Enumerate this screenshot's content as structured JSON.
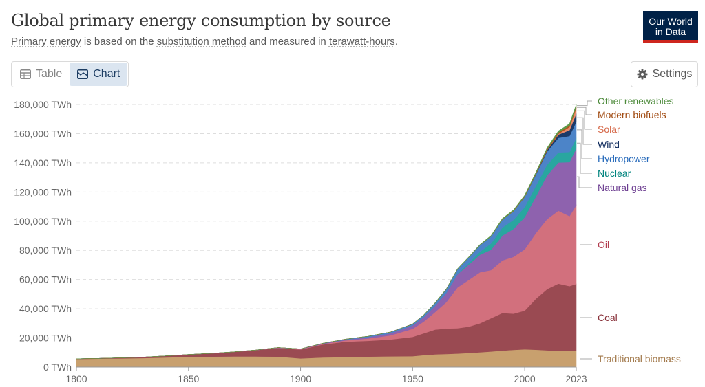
{
  "header": {
    "title": "Global primary energy consumption by source",
    "subtitle_parts": [
      {
        "text": "Primary energy",
        "link": true
      },
      {
        "text": " is based on the ",
        "link": false
      },
      {
        "text": "substitution method",
        "link": true
      },
      {
        "text": " and measured in ",
        "link": false
      },
      {
        "text": "terawatt-hours",
        "link": true
      },
      {
        "text": ".",
        "link": false
      }
    ],
    "logo_line1": "Our World",
    "logo_line2": "in Data"
  },
  "toolbar": {
    "table_label": "Table",
    "chart_label": "Chart",
    "active_tab": "Chart",
    "settings_label": "Settings"
  },
  "chart_data": {
    "type": "area",
    "stacked": true,
    "x": [
      1800,
      1810,
      1820,
      1830,
      1840,
      1850,
      1860,
      1870,
      1880,
      1890,
      1900,
      1910,
      1920,
      1930,
      1940,
      1950,
      1955,
      1960,
      1965,
      1970,
      1975,
      1980,
      1985,
      1990,
      1995,
      2000,
      2005,
      2010,
      2015,
      2020,
      2023
    ],
    "series": [
      {
        "name": "Traditional biomass",
        "color": "#c8a06e",
        "label_color": "#a2794b",
        "values": [
          5600,
          5800,
          6000,
          6200,
          6600,
          7000,
          7200,
          7300,
          7300,
          7200,
          6000,
          6600,
          6900,
          7200,
          7400,
          7500,
          8200,
          8700,
          9000,
          9300,
          9700,
          10200,
          10700,
          11300,
          11800,
          12200,
          11900,
          11500,
          11200,
          11000,
          11000
        ]
      },
      {
        "name": "Coal",
        "color": "#9a4a52",
        "label_color": "#883039",
        "values": [
          100,
          200,
          400,
          700,
          1100,
          1600,
          2200,
          3100,
          4300,
          5900,
          6000,
          8900,
          10500,
          10800,
          11500,
          13200,
          15000,
          17000,
          17500,
          17300,
          18000,
          19800,
          22800,
          25800,
          24800,
          26500,
          35000,
          42000,
          46000,
          44500,
          46000
        ]
      },
      {
        "name": "Oil",
        "color": "#d2707d",
        "label_color": "#b13c4e",
        "values": [
          0,
          0,
          0,
          0,
          0,
          0,
          0,
          10,
          50,
          200,
          250,
          400,
          900,
          1600,
          2800,
          5500,
          8000,
          12000,
          18000,
          28000,
          32000,
          35000,
          33000,
          36000,
          39000,
          42000,
          45000,
          48000,
          50000,
          48000,
          54000
        ]
      },
      {
        "name": "Natural gas",
        "color": "#8e62ae",
        "label_color": "#6d3e91",
        "values": [
          0,
          0,
          0,
          0,
          0,
          0,
          0,
          0,
          50,
          100,
          200,
          300,
          500,
          900,
          1400,
          2300,
          3100,
          4300,
          6300,
          9000,
          10500,
          12000,
          14000,
          17000,
          19000,
          22000,
          25000,
          30000,
          33000,
          37000,
          39000
        ]
      },
      {
        "name": "Nuclear",
        "color": "#29a6a0",
        "label_color": "#00847e",
        "values": [
          0,
          0,
          0,
          0,
          0,
          0,
          0,
          0,
          0,
          0,
          0,
          0,
          0,
          0,
          0,
          0,
          0,
          30,
          100,
          250,
          1000,
          2000,
          4200,
          5500,
          6300,
          7000,
          7300,
          7300,
          6900,
          6900,
          7000
        ]
      },
      {
        "name": "Hydropower",
        "color": "#4c84c8",
        "label_color": "#286bbb",
        "values": [
          0,
          0,
          0,
          0,
          0,
          0,
          0,
          0,
          0,
          10,
          50,
          150,
          350,
          600,
          900,
          1000,
          1400,
          1900,
          2500,
          3400,
          4000,
          4600,
          5000,
          5500,
          6000,
          7000,
          7800,
          9000,
          10000,
          11000,
          11200
        ]
      },
      {
        "name": "Wind",
        "color": "#1b3a68",
        "label_color": "#0e2a5c",
        "values": [
          0,
          0,
          0,
          0,
          0,
          0,
          0,
          0,
          0,
          0,
          0,
          0,
          0,
          0,
          0,
          0,
          0,
          0,
          0,
          0,
          0,
          0,
          0,
          10,
          20,
          80,
          300,
          900,
          2200,
          4000,
          5500
        ]
      },
      {
        "name": "Solar",
        "color": "#e78a6a",
        "label_color": "#d66a4b",
        "values": [
          0,
          0,
          0,
          0,
          0,
          0,
          0,
          0,
          0,
          0,
          0,
          0,
          0,
          0,
          0,
          0,
          0,
          0,
          0,
          0,
          0,
          0,
          0,
          0,
          0,
          5,
          20,
          80,
          600,
          2200,
          3700
        ]
      },
      {
        "name": "Modern biofuels",
        "color": "#b1571c",
        "label_color": "#a14b12",
        "values": [
          0,
          0,
          0,
          0,
          0,
          0,
          0,
          0,
          0,
          0,
          0,
          0,
          0,
          0,
          0,
          0,
          0,
          0,
          0,
          0,
          0,
          20,
          80,
          150,
          200,
          250,
          400,
          700,
          900,
          1000,
          1150
        ]
      },
      {
        "name": "Other renewables",
        "color": "#5c9b4a",
        "label_color": "#4c8a3a",
        "values": [
          0,
          0,
          0,
          0,
          0,
          0,
          0,
          0,
          0,
          0,
          0,
          0,
          0,
          0,
          0,
          0,
          50,
          80,
          100,
          150,
          200,
          300,
          400,
          500,
          600,
          700,
          800,
          900,
          1000,
          1200,
          1400
        ]
      }
    ],
    "xlim": [
      1800,
      2023
    ],
    "ylim": [
      0,
      180000
    ],
    "y_ticks": [
      "0 TWh",
      "20,000 TWh",
      "40,000 TWh",
      "60,000 TWh",
      "80,000 TWh",
      "100,000 TWh",
      "120,000 TWh",
      "140,000 TWh",
      "160,000 TWh",
      "180,000 TWh"
    ],
    "y_tick_values": [
      0,
      20000,
      40000,
      60000,
      80000,
      100000,
      120000,
      140000,
      160000,
      180000
    ],
    "x_ticks": [
      "1800",
      "1850",
      "1900",
      "1950",
      "2000",
      "2023"
    ],
    "x_tick_values": [
      1800,
      1850,
      1900,
      1950,
      2000,
      2023
    ],
    "grid": true,
    "legend_placement": "right"
  }
}
